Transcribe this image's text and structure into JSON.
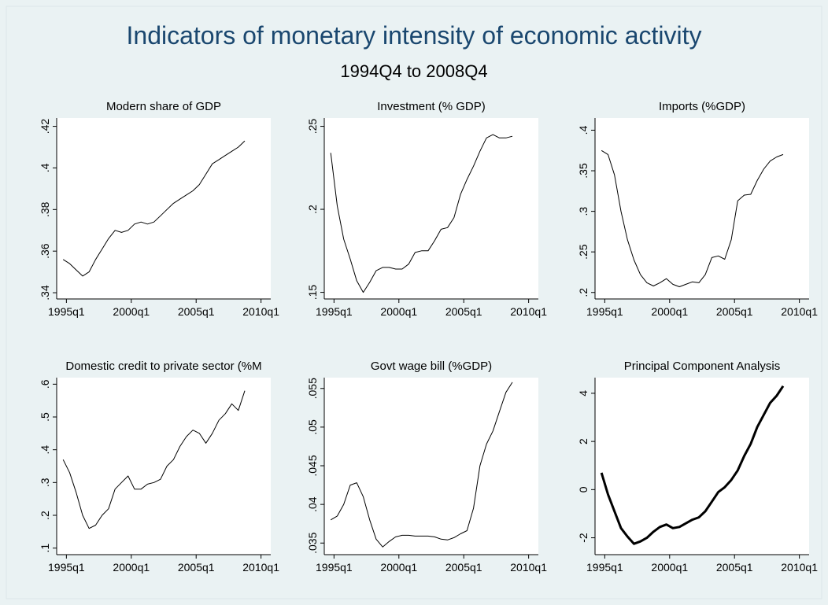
{
  "title": "Indicators of monetary intensity of economic activity",
  "subtitle": "1994Q4 to 2008Q4",
  "chart_data": [
    {
      "type": "line",
      "title": "Modern share of GDP",
      "color": "#000000",
      "line_width": 1,
      "x": [
        "1994q4",
        "1995q2",
        "1995q4",
        "1996q2",
        "1996q4",
        "1997q2",
        "1997q4",
        "1998q2",
        "1998q4",
        "1999q2",
        "1999q4",
        "2000q2",
        "2000q4",
        "2001q2",
        "2001q4",
        "2002q2",
        "2002q4",
        "2003q2",
        "2003q4",
        "2004q2",
        "2004q4",
        "2005q2",
        "2005q4",
        "2006q2",
        "2006q4",
        "2007q2",
        "2007q4",
        "2008q2",
        "2008q4"
      ],
      "values": [
        0.356,
        0.354,
        0.351,
        0.348,
        0.35,
        0.356,
        0.361,
        0.366,
        0.37,
        0.369,
        0.37,
        0.373,
        0.374,
        0.373,
        0.374,
        0.377,
        0.38,
        0.383,
        0.385,
        0.387,
        0.389,
        0.392,
        0.397,
        0.402,
        0.404,
        0.406,
        0.408,
        0.41,
        0.413
      ],
      "xlim": [
        "1994q2",
        "2010q4"
      ],
      "xticks": [
        "1995q1",
        "2000q1",
        "2005q1",
        "2010q1"
      ],
      "ylim": [
        0.337,
        0.424
      ],
      "yticks": [
        {
          "value": 0.34,
          "label": ".34"
        },
        {
          "value": 0.36,
          "label": ".36"
        },
        {
          "value": 0.38,
          "label": ".38"
        },
        {
          "value": 0.4,
          "label": ".4"
        },
        {
          "value": 0.42,
          "label": ".42"
        }
      ]
    },
    {
      "type": "line",
      "title": "Investment (% GDP)",
      "color": "#000000",
      "line_width": 1,
      "x": [
        "1994q4",
        "1995q2",
        "1995q4",
        "1996q2",
        "1996q4",
        "1997q2",
        "1997q4",
        "1998q2",
        "1998q4",
        "1999q2",
        "1999q4",
        "2000q2",
        "2000q4",
        "2001q2",
        "2001q4",
        "2002q2",
        "2002q4",
        "2003q2",
        "2003q4",
        "2004q2",
        "2004q4",
        "2005q2",
        "2005q4",
        "2006q2",
        "2006q4",
        "2007q2",
        "2007q4",
        "2008q2",
        "2008q4"
      ],
      "values": [
        0.234,
        0.202,
        0.182,
        0.17,
        0.157,
        0.15,
        0.156,
        0.163,
        0.165,
        0.165,
        0.164,
        0.164,
        0.167,
        0.174,
        0.175,
        0.175,
        0.181,
        0.188,
        0.189,
        0.195,
        0.209,
        0.218,
        0.226,
        0.235,
        0.243,
        0.245,
        0.243,
        0.243,
        0.244
      ],
      "xlim": [
        "1994q2",
        "2010q4"
      ],
      "xticks": [
        "1995q1",
        "2000q1",
        "2005q1",
        "2010q1"
      ],
      "ylim": [
        0.146,
        0.255
      ],
      "yticks": [
        {
          "value": 0.15,
          "label": ".15"
        },
        {
          "value": 0.2,
          "label": ".2"
        },
        {
          "value": 0.25,
          "label": ".25"
        }
      ]
    },
    {
      "type": "line",
      "title": "Imports (%GDP)",
      "color": "#000000",
      "line_width": 1,
      "x": [
        "1994q4",
        "1995q2",
        "1995q4",
        "1996q2",
        "1996q4",
        "1997q2",
        "1997q4",
        "1998q2",
        "1998q4",
        "1999q2",
        "1999q4",
        "2000q2",
        "2000q4",
        "2001q2",
        "2001q4",
        "2002q2",
        "2002q4",
        "2003q2",
        "2003q4",
        "2004q2",
        "2004q4",
        "2005q2",
        "2005q4",
        "2006q2",
        "2006q4",
        "2007q2",
        "2007q4",
        "2008q2",
        "2008q4"
      ],
      "values": [
        0.375,
        0.37,
        0.345,
        0.3,
        0.265,
        0.24,
        0.222,
        0.212,
        0.208,
        0.212,
        0.217,
        0.21,
        0.207,
        0.21,
        0.213,
        0.212,
        0.222,
        0.243,
        0.245,
        0.241,
        0.265,
        0.313,
        0.32,
        0.321,
        0.338,
        0.352,
        0.362,
        0.367,
        0.37
      ],
      "xlim": [
        "1994q2",
        "2010q4"
      ],
      "xticks": [
        "1995q1",
        "2000q1",
        "2005q1",
        "2010q1"
      ],
      "ylim": [
        0.192,
        0.415
      ],
      "yticks": [
        {
          "value": 0.2,
          "label": ".2"
        },
        {
          "value": 0.25,
          "label": ".25"
        },
        {
          "value": 0.3,
          "label": ".3"
        },
        {
          "value": 0.35,
          "label": ".35"
        },
        {
          "value": 0.4,
          "label": ".4"
        }
      ]
    },
    {
      "type": "line",
      "title": "Domestic credit to private sector (%M",
      "color": "#000000",
      "line_width": 1,
      "x": [
        "1994q4",
        "1995q2",
        "1995q4",
        "1996q2",
        "1996q4",
        "1997q2",
        "1997q4",
        "1998q2",
        "1998q4",
        "1999q2",
        "1999q4",
        "2000q2",
        "2000q4",
        "2001q2",
        "2001q4",
        "2002q2",
        "2002q4",
        "2003q2",
        "2003q4",
        "2004q2",
        "2004q4",
        "2005q2",
        "2005q4",
        "2006q2",
        "2006q4",
        "2007q2",
        "2007q4",
        "2008q2",
        "2008q4"
      ],
      "values": [
        0.37,
        0.33,
        0.27,
        0.2,
        0.16,
        0.17,
        0.2,
        0.22,
        0.28,
        0.3,
        0.32,
        0.28,
        0.28,
        0.295,
        0.3,
        0.31,
        0.35,
        0.37,
        0.41,
        0.44,
        0.46,
        0.45,
        0.42,
        0.45,
        0.49,
        0.51,
        0.54,
        0.52,
        0.58
      ],
      "xlim": [
        "1994q2",
        "2010q4"
      ],
      "xticks": [
        "1995q1",
        "2000q1",
        "2005q1",
        "2010q1"
      ],
      "ylim": [
        0.08,
        0.62
      ],
      "yticks": [
        {
          "value": 0.1,
          "label": ".1"
        },
        {
          "value": 0.2,
          "label": ".2"
        },
        {
          "value": 0.3,
          "label": ".3"
        },
        {
          "value": 0.4,
          "label": ".4"
        },
        {
          "value": 0.5,
          "label": ".5"
        },
        {
          "value": 0.6,
          "label": ".6"
        }
      ]
    },
    {
      "type": "line",
      "title": "Govt wage bill (%GDP)",
      "color": "#000000",
      "line_width": 1,
      "x": [
        "1994q4",
        "1995q2",
        "1995q4",
        "1996q2",
        "1996q4",
        "1997q2",
        "1997q4",
        "1998q2",
        "1998q4",
        "1999q2",
        "1999q4",
        "2000q2",
        "2000q4",
        "2001q2",
        "2001q4",
        "2002q2",
        "2002q4",
        "2003q2",
        "2003q4",
        "2004q2",
        "2004q4",
        "2005q2",
        "2005q4",
        "2006q2",
        "2006q4",
        "2007q2",
        "2007q4",
        "2008q2",
        "2008q4"
      ],
      "values": [
        0.038,
        0.0385,
        0.04,
        0.0425,
        0.0428,
        0.041,
        0.038,
        0.0355,
        0.0345,
        0.0352,
        0.0358,
        0.036,
        0.036,
        0.0359,
        0.0359,
        0.0359,
        0.0358,
        0.0355,
        0.0354,
        0.0357,
        0.0362,
        0.0366,
        0.0395,
        0.045,
        0.0478,
        0.0495,
        0.052,
        0.0545,
        0.0558
      ],
      "xlim": [
        "1994q2",
        "2010q4"
      ],
      "xticks": [
        "1995q1",
        "2000q1",
        "2005q1",
        "2010q1"
      ],
      "ylim": [
        0.0335,
        0.0564
      ],
      "yticks": [
        {
          "value": 0.035,
          "label": ".035"
        },
        {
          "value": 0.04,
          "label": ".04"
        },
        {
          "value": 0.045,
          "label": ".045"
        },
        {
          "value": 0.05,
          "label": ".05"
        },
        {
          "value": 0.055,
          "label": ".055"
        }
      ]
    },
    {
      "type": "line",
      "title": "Principal Component Analysis",
      "color": "#000000",
      "line_width": 3,
      "x": [
        "1994q4",
        "1995q2",
        "1995q4",
        "1996q2",
        "1996q4",
        "1997q2",
        "1997q4",
        "1998q2",
        "1998q4",
        "1999q2",
        "1999q4",
        "2000q2",
        "2000q4",
        "2001q2",
        "2001q4",
        "2002q2",
        "2002q4",
        "2003q2",
        "2003q4",
        "2004q2",
        "2004q4",
        "2005q2",
        "2005q4",
        "2006q2",
        "2006q4",
        "2007q2",
        "2007q4",
        "2008q2",
        "2008q4"
      ],
      "values": [
        0.7,
        -0.2,
        -0.9,
        -1.6,
        -1.95,
        -2.25,
        -2.15,
        -2.0,
        -1.75,
        -1.55,
        -1.45,
        -1.6,
        -1.55,
        -1.4,
        -1.25,
        -1.15,
        -0.9,
        -0.5,
        -0.1,
        0.1,
        0.4,
        0.8,
        1.4,
        1.9,
        2.6,
        3.1,
        3.6,
        3.9,
        4.3
      ],
      "xlim": [
        "1994q2",
        "2010q4"
      ],
      "xticks": [
        "1995q1",
        "2000q1",
        "2005q1",
        "2010q1"
      ],
      "ylim": [
        -2.7,
        4.65
      ],
      "yticks": [
        -2,
        0,
        2,
        4
      ]
    }
  ]
}
